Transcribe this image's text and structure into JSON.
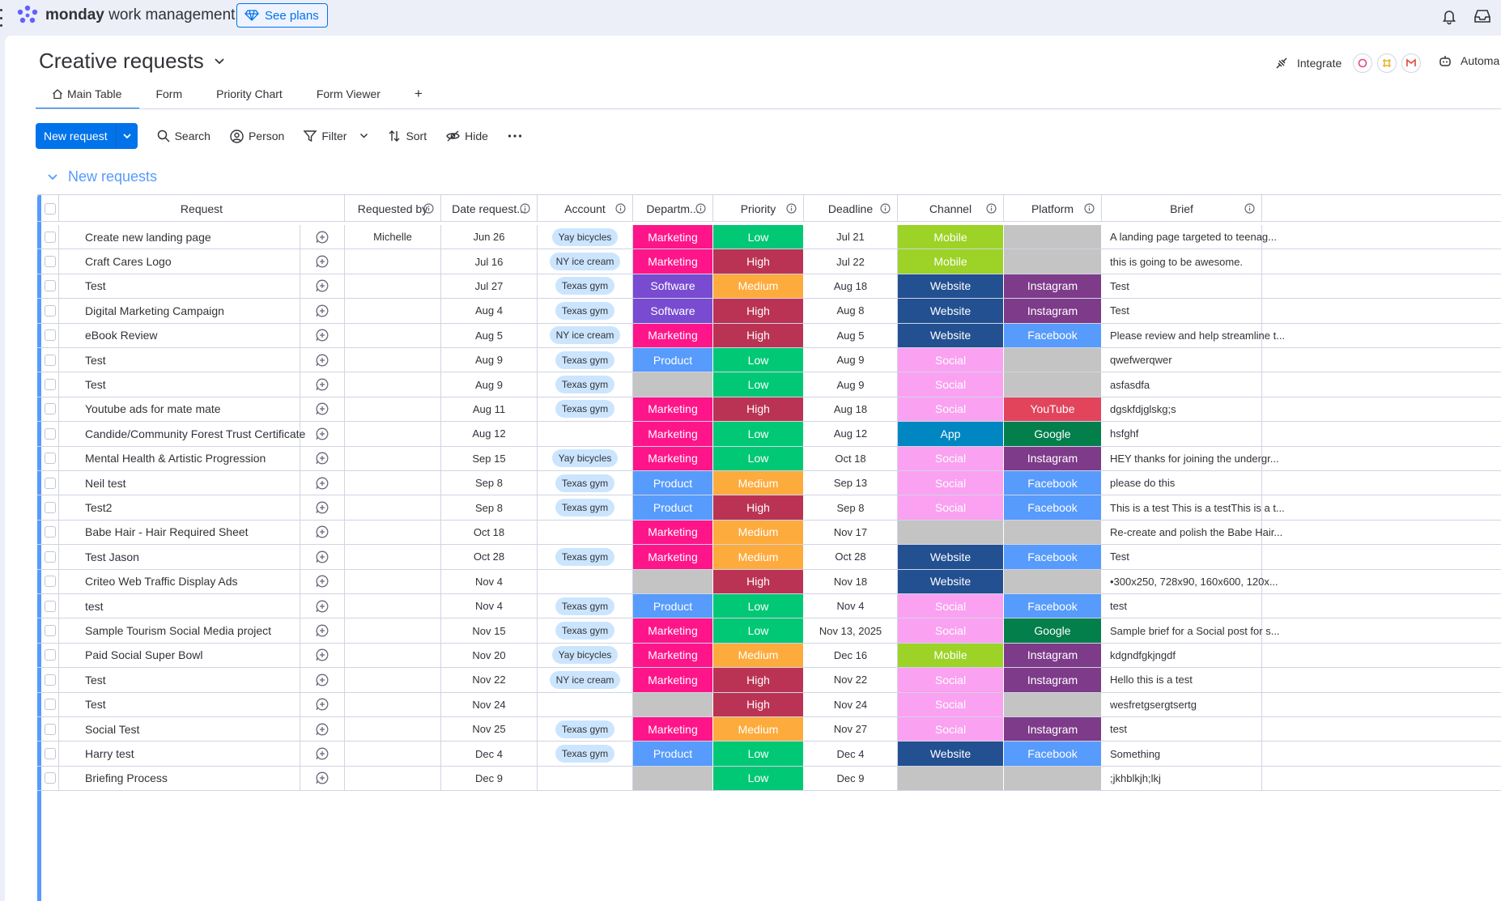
{
  "app": {
    "brand_bold": "monday",
    "brand_rest": " work management",
    "see_plans": "See plans"
  },
  "board": {
    "title": "Creative requests",
    "integrate": "Integrate",
    "automate": "Automa"
  },
  "tabs": [
    {
      "label": "Main Table",
      "active": true
    },
    {
      "label": "Form"
    },
    {
      "label": "Priority Chart"
    },
    {
      "label": "Form Viewer"
    },
    {
      "label": "+"
    }
  ],
  "toolbar": {
    "new_request": "New request",
    "search": "Search",
    "person": "Person",
    "filter": "Filter",
    "sort": "Sort",
    "hide": "Hide"
  },
  "group": {
    "title": "New requests"
  },
  "columns": [
    "Request",
    "Requested by",
    "Date request...",
    "Account",
    "Departm...",
    "Priority",
    "Deadline",
    "Channel",
    "Platform",
    "Brief"
  ],
  "colors": {
    "Marketing": "#ff158a",
    "Software": "#784bd1",
    "Product": "#579bfc",
    "Low": "#00c875",
    "High": "#bb3354",
    "Medium": "#fdab3d",
    "Mobile": "#9cd326",
    "Website": "#225091",
    "Social": "#faa1f1",
    "App": "#0086c0",
    "Instagram": "#7e3b8a",
    "Facebook": "#579bfc",
    "YouTube": "#e2445c",
    "Google": "#037f4c",
    "empty": "#c4c4c4"
  },
  "rows": [
    {
      "name": "Create new landing page",
      "by": "Michelle",
      "date": "Jun 26",
      "account": "Yay bicycles",
      "dept": "Marketing",
      "priority": "Low",
      "deadline": "Jul 21",
      "channel": "Mobile",
      "platform": "",
      "brief": "A landing page targeted to teenag..."
    },
    {
      "name": "Craft Cares Logo",
      "by": "",
      "date": "Jul 16",
      "account": "NY ice cream",
      "dept": "Marketing",
      "priority": "High",
      "deadline": "Jul 22",
      "channel": "Mobile",
      "platform": "",
      "brief": "this is going to be awesome."
    },
    {
      "name": "Test",
      "by": "",
      "date": "Jul 27",
      "account": "Texas gym",
      "dept": "Software",
      "priority": "Medium",
      "deadline": "Aug 18",
      "channel": "Website",
      "platform": "Instagram",
      "brief": "Test"
    },
    {
      "name": "Digital Marketing Campaign",
      "by": "",
      "date": "Aug 4",
      "account": "Texas gym",
      "dept": "Software",
      "priority": "High",
      "deadline": "Aug 8",
      "channel": "Website",
      "platform": "Instagram",
      "brief": "Test"
    },
    {
      "name": "eBook Review",
      "by": "",
      "date": "Aug 5",
      "account": "NY ice cream",
      "dept": "Marketing",
      "priority": "High",
      "deadline": "Aug 5",
      "channel": "Website",
      "platform": "Facebook",
      "brief": "Please review and help streamline t..."
    },
    {
      "name": "Test",
      "by": "",
      "date": "Aug 9",
      "account": "Texas gym",
      "dept": "Product",
      "priority": "Low",
      "deadline": "Aug 9",
      "channel": "Social",
      "platform": "",
      "brief": "qwefwerqwer"
    },
    {
      "name": "Test",
      "by": "",
      "date": "Aug 9",
      "account": "Texas gym",
      "dept": "",
      "priority": "Low",
      "deadline": "Aug 9",
      "channel": "Social",
      "platform": "",
      "brief": "asfasdfa"
    },
    {
      "name": "Youtube ads for mate mate",
      "by": "",
      "date": "Aug 11",
      "account": "Texas gym",
      "dept": "Marketing",
      "priority": "High",
      "deadline": "Aug 18",
      "channel": "Social",
      "platform": "YouTube",
      "brief": "dgskfdjglskg;s"
    },
    {
      "name": "Candide/Community Forest Trust Certificate",
      "by": "",
      "date": "Aug 12",
      "account": "",
      "dept": "Marketing",
      "priority": "Low",
      "deadline": "Aug 12",
      "channel": "App",
      "platform": "Google",
      "brief": "hsfghf"
    },
    {
      "name": "Mental Health & Artistic Progression",
      "by": "",
      "date": "Sep 15",
      "account": "Yay bicycles",
      "dept": "Marketing",
      "priority": "Low",
      "deadline": "Oct 18",
      "channel": "Social",
      "platform": "Instagram",
      "brief": "HEY thanks for joining the undergr..."
    },
    {
      "name": "Neil test",
      "by": "",
      "date": "Sep 8",
      "account": "Texas gym",
      "dept": "Product",
      "priority": "Medium",
      "deadline": "Sep 13",
      "channel": "Social",
      "platform": "Facebook",
      "brief": "please do this"
    },
    {
      "name": "Test2",
      "by": "",
      "date": "Sep 8",
      "account": "Texas gym",
      "dept": "Product",
      "priority": "High",
      "deadline": "Sep 8",
      "channel": "Social",
      "platform": "Facebook",
      "brief": "This is a test This is a testThis is a t..."
    },
    {
      "name": "Babe Hair - Hair Required Sheet",
      "by": "",
      "date": "Oct 18",
      "account": "",
      "dept": "Marketing",
      "priority": "Medium",
      "deadline": "Nov 17",
      "channel": "",
      "platform": "",
      "brief": "Re-create and polish the Babe Hair..."
    },
    {
      "name": "Test Jason",
      "by": "",
      "date": "Oct 28",
      "account": "Texas gym",
      "dept": "Marketing",
      "priority": "Medium",
      "deadline": "Oct 28",
      "channel": "Website",
      "platform": "Facebook",
      "brief": "Test"
    },
    {
      "name": "Criteo Web Traffic Display Ads",
      "by": "",
      "date": "Nov 4",
      "account": "",
      "dept": "",
      "priority": "High",
      "deadline": "Nov 18",
      "channel": "Website",
      "platform": "",
      "brief": "•300x250, 728x90, 160x600, 120x..."
    },
    {
      "name": "test",
      "by": "",
      "date": "Nov 4",
      "account": "Texas gym",
      "dept": "Product",
      "priority": "Low",
      "deadline": "Nov 4",
      "channel": "Social",
      "platform": "Facebook",
      "brief": "test"
    },
    {
      "name": "Sample Tourism Social Media project",
      "by": "",
      "date": "Nov 15",
      "account": "Texas gym",
      "dept": "Marketing",
      "priority": "Low",
      "deadline": "Nov 13, 2025",
      "channel": "Social",
      "platform": "Google",
      "brief": "Sample brief for a Social post for s..."
    },
    {
      "name": "Paid Social Super Bowl",
      "by": "",
      "date": "Nov 20",
      "account": "Yay bicycles",
      "dept": "Marketing",
      "priority": "Medium",
      "deadline": "Dec 16",
      "channel": "Mobile",
      "platform": "Instagram",
      "brief": "kdgndfgkjngdf"
    },
    {
      "name": "Test",
      "by": "",
      "date": "Nov 22",
      "account": "NY ice cream",
      "dept": "Marketing",
      "priority": "High",
      "deadline": "Nov 22",
      "channel": "Social",
      "platform": "Instagram",
      "brief": "Hello this is a test"
    },
    {
      "name": "Test",
      "by": "",
      "date": "Nov 24",
      "account": "",
      "dept": "",
      "priority": "High",
      "deadline": "Nov 24",
      "channel": "Social",
      "platform": "",
      "brief": "wesfretgsergtsertg"
    },
    {
      "name": "Social Test",
      "by": "",
      "date": "Nov 25",
      "account": "Texas gym",
      "dept": "Marketing",
      "priority": "Medium",
      "deadline": "Nov 27",
      "channel": "Social",
      "platform": "Instagram",
      "brief": "test"
    },
    {
      "name": "Harry test",
      "by": "",
      "date": "Dec 4",
      "account": "Texas gym",
      "dept": "Product",
      "priority": "Low",
      "deadline": "Dec 4",
      "channel": "Website",
      "platform": "Facebook",
      "brief": "Something"
    },
    {
      "name": "Briefing Process",
      "by": "",
      "date": "Dec 9",
      "account": "",
      "dept": "",
      "priority": "Low",
      "deadline": "Dec 9",
      "channel": "",
      "platform": "",
      "brief": ";jkhblkjh;lkj"
    }
  ],
  "icons": {
    "update": "add-update-icon",
    "info": "info-icon",
    "bell": "bell-icon",
    "inbox": "inbox-icon"
  }
}
